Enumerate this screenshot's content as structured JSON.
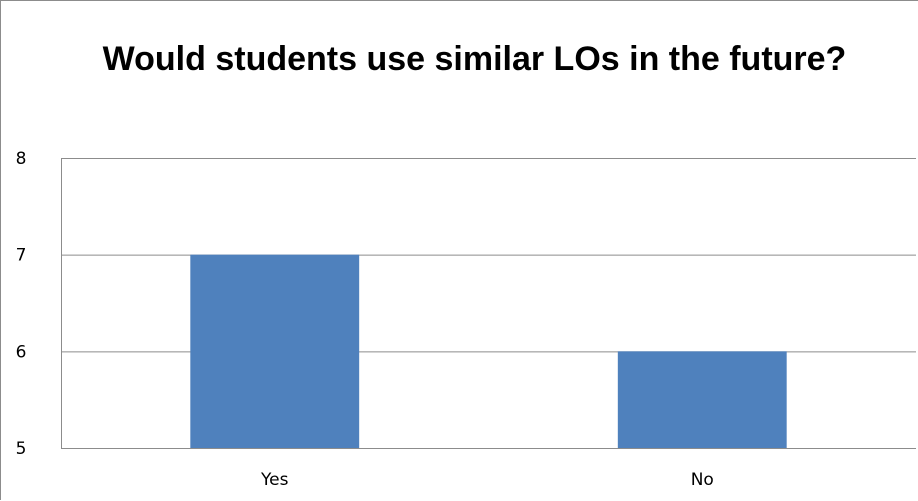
{
  "chart_data": {
    "type": "bar",
    "title": "Would students use similar LOs in the future?",
    "categories": [
      "Yes",
      "No"
    ],
    "values": [
      7,
      6
    ],
    "xlabel": "",
    "ylabel": "",
    "ylim": [
      5,
      8
    ],
    "yticks": [
      5,
      6,
      7,
      8
    ],
    "grid": true,
    "legend": "none",
    "bar_color": "#4f81bd",
    "gridline_color": "#8c8c8c"
  }
}
